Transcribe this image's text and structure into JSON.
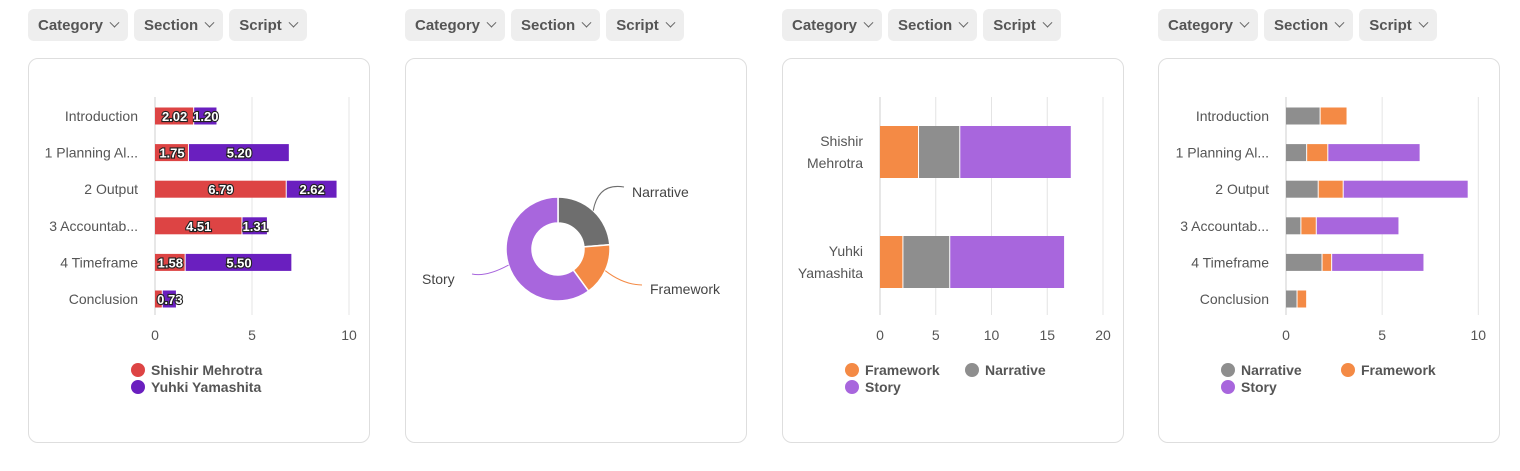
{
  "filters": [
    {
      "category": "Category",
      "section": "Section",
      "script": "Script"
    },
    {
      "category": "Category",
      "section": "Section",
      "script": "Script"
    },
    {
      "category": "Category",
      "section": "Section",
      "script": "Script"
    },
    {
      "category": "Category",
      "section": "Section",
      "script": "Script"
    }
  ],
  "chart_data": [
    {
      "type": "bar",
      "orientation": "horizontal",
      "stacked": true,
      "categories": [
        "Introduction",
        "1 Planning Al...",
        "2 Output",
        "3 Accountab...",
        "4 Timeframe",
        "Conclusion"
      ],
      "series": [
        {
          "name": "Shishir Mehrotra",
          "color": "#dd4444",
          "values": [
            2.02,
            1.75,
            6.79,
            4.51,
            1.58,
            0.4
          ]
        },
        {
          "name": "Yuhki Yamashita",
          "color": "#6a1fbf",
          "values": [
            1.2,
            5.2,
            2.62,
            1.31,
            5.5,
            0.73
          ]
        }
      ],
      "data_labels": [
        [
          "2.02",
          "1.75",
          "6.79",
          "4.51",
          "1.58",
          ""
        ],
        [
          "1.20",
          "5.20",
          "2.62",
          "1.31",
          "5.50",
          "0.73"
        ]
      ],
      "xticks": [
        "0",
        "5",
        "10"
      ],
      "xlim": [
        0,
        10
      ],
      "grid": true,
      "legend": "bottom"
    },
    {
      "type": "pie",
      "donut": true,
      "labels": [
        "Narrative",
        "Framework",
        "Story"
      ],
      "values": [
        4.5,
        3.1,
        11.4
      ],
      "colors": [
        "#6e6e6e",
        "#f48a45",
        "#a866dd"
      ],
      "legend": "none"
    },
    {
      "type": "bar",
      "orientation": "horizontal",
      "stacked": true,
      "categories": [
        "Shishir\nMehrotra",
        "Yuhki\nYamashita"
      ],
      "series": [
        {
          "name": "Framework",
          "color": "#f48a45",
          "values": [
            3.5,
            2.1
          ]
        },
        {
          "name": "Narrative",
          "color": "#8e8e8e",
          "values": [
            3.7,
            4.2
          ]
        },
        {
          "name": "Story",
          "color": "#a866dd",
          "values": [
            10.0,
            10.3
          ]
        }
      ],
      "xticks": [
        "0",
        "5",
        "10",
        "15",
        "20"
      ],
      "xlim": [
        0,
        20
      ],
      "grid": true,
      "legend": "bottom"
    },
    {
      "type": "bar",
      "orientation": "horizontal",
      "stacked": true,
      "categories": [
        "Introduction",
        "1 Planning Al...",
        "2 Output",
        "3 Accountab...",
        "4 Timeframe",
        "Conclusion"
      ],
      "series": [
        {
          "name": "Narrative",
          "color": "#8e8e8e",
          "values": [
            1.8,
            1.1,
            1.7,
            0.8,
            1.9,
            0.6
          ]
        },
        {
          "name": "Framework",
          "color": "#f48a45",
          "values": [
            1.4,
            1.1,
            1.3,
            0.8,
            0.5,
            0.5
          ]
        },
        {
          "name": "Story",
          "color": "#a866dd",
          "values": [
            0,
            4.8,
            6.5,
            4.3,
            4.8,
            0
          ]
        }
      ],
      "xticks": [
        "0",
        "5",
        "10"
      ],
      "xlim": [
        0,
        10.4
      ],
      "grid": true,
      "legend": "bottom"
    }
  ]
}
